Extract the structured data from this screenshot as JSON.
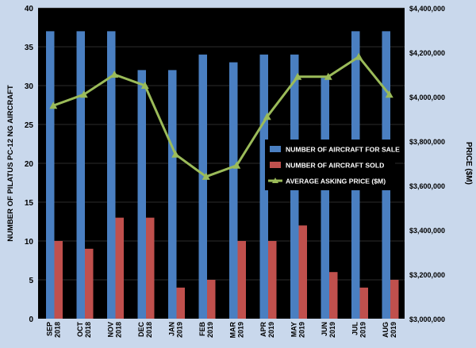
{
  "chart_data": {
    "type": "bar",
    "categories": [
      [
        "SEP",
        "2018"
      ],
      [
        "OCT",
        "2018"
      ],
      [
        "NOV",
        "2018"
      ],
      [
        "DEC",
        "2018"
      ],
      [
        "JAN",
        "2019"
      ],
      [
        "FEB",
        "2019"
      ],
      [
        "MAR",
        "2019"
      ],
      [
        "APR",
        "2019"
      ],
      [
        "MAY",
        "2019"
      ],
      [
        "JUN",
        "2019"
      ],
      [
        "JUL",
        "2019"
      ],
      [
        "AUG",
        "2019"
      ]
    ],
    "series": [
      {
        "name": "NUMBER OF AIRCRAFT FOR SALE",
        "type": "bar",
        "axis": "left",
        "color": "#4a7fc1",
        "values": [
          37,
          37,
          37,
          32,
          32,
          34,
          33,
          34,
          34,
          31,
          37,
          37
        ]
      },
      {
        "name": "NUMBER OF AIRCRAFT SOLD",
        "type": "bar",
        "axis": "left",
        "color": "#c0504d",
        "values": [
          10,
          9,
          13,
          13,
          4,
          5,
          10,
          10,
          12,
          6,
          4,
          5
        ]
      },
      {
        "name": "AVERAGE ASKING PRICE ($M)",
        "type": "line",
        "axis": "right",
        "color": "#9bbb59",
        "values": [
          3960000,
          4010000,
          4100000,
          4050000,
          3740000,
          3640000,
          3690000,
          3910000,
          4090000,
          4090000,
          4180000,
          4010000
        ]
      }
    ],
    "ylabel": "NUMBER OF PILATUS PC-12 NG AIRCRAFT",
    "y2label": "PRICE ($M)",
    "ylim": [
      0,
      40
    ],
    "y2lim": [
      3000000,
      4400000
    ],
    "yticks": [
      "0",
      "5",
      "10",
      "15",
      "20",
      "25",
      "30",
      "35",
      "40"
    ],
    "y2ticks": [
      "$3,000,000",
      "$3,200,000",
      "$3,400,000",
      "$3,600,000",
      "$3,800,000",
      "$4,000,000",
      "$4,200,000",
      "$4,400,000"
    ],
    "grid": true,
    "legend": "right-middle"
  }
}
